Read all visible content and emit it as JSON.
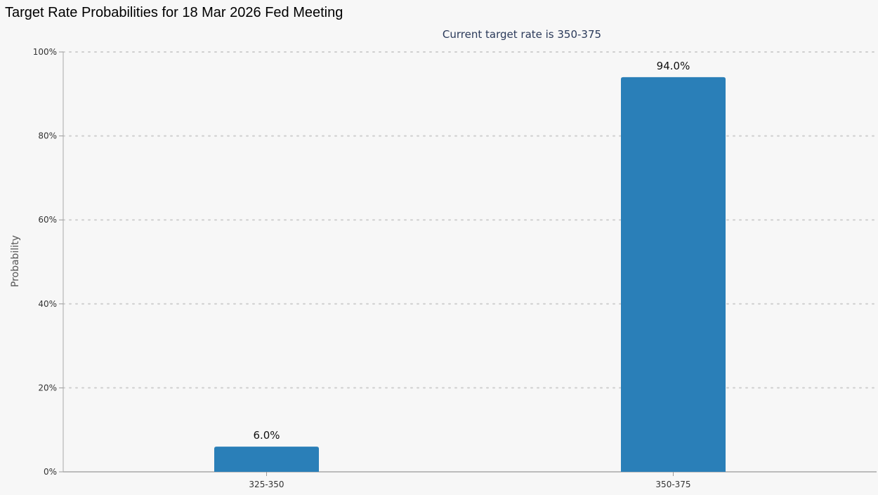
{
  "chart_data": {
    "type": "bar",
    "title": "Target Rate Probabilities for 18 Mar 2026 Fed Meeting",
    "subtitle": "Current target rate is 350-375",
    "ylabel": "Probability",
    "xlabel": "",
    "categories": [
      "325-350",
      "350-375"
    ],
    "values": [
      6.0,
      94.0
    ],
    "data_labels": [
      "6.0%",
      "94.0%"
    ],
    "ylim": [
      0,
      100
    ],
    "yticks": [
      0,
      20,
      40,
      60,
      80,
      100
    ],
    "ytick_labels": [
      "0%",
      "20%",
      "40%",
      "60%",
      "80%",
      "100%"
    ],
    "grid": true,
    "legend": false,
    "bar_color": "#2a7fb8"
  }
}
